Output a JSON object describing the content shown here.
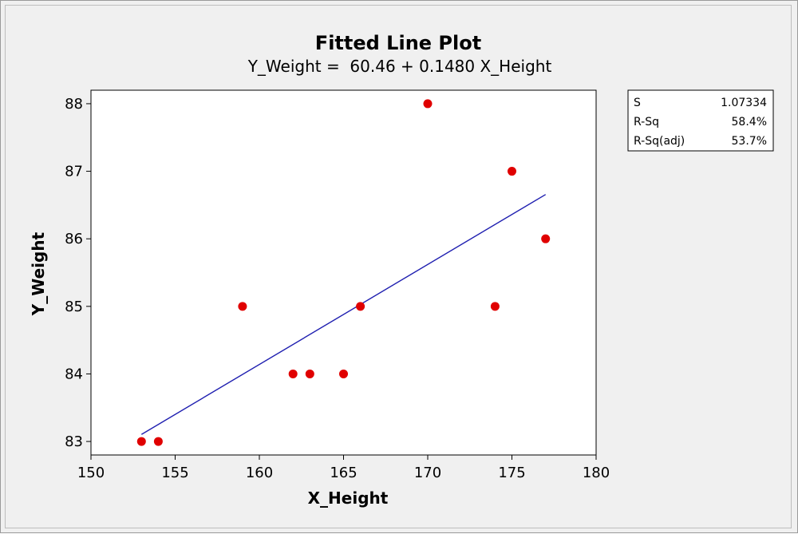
{
  "chart_data": {
    "type": "scatter",
    "title": "Fitted Line Plot",
    "subtitle": "Y_Weight =  60.46 + 0.1480 X_Height",
    "xlabel": "X_Height",
    "ylabel": "Y_Weight",
    "xlim": [
      150,
      180
    ],
    "ylim": [
      82.8,
      88.2
    ],
    "xticks": [
      150,
      155,
      160,
      165,
      170,
      175,
      180
    ],
    "yticks": [
      83,
      84,
      85,
      86,
      87,
      88
    ],
    "grid": false,
    "series": [
      {
        "type": "scatter",
        "color": "#e00000",
        "x": [
          153,
          154,
          159,
          162,
          163,
          165,
          166,
          170,
          174,
          175,
          177
        ],
        "y": [
          83,
          83,
          85,
          84,
          84,
          84,
          85,
          88,
          85,
          87,
          86
        ]
      },
      {
        "type": "line",
        "color": "#1f1fb0",
        "intercept": 60.46,
        "slope": 0.148,
        "x_range": [
          153,
          177
        ]
      }
    ],
    "stats_box": [
      {
        "label": "S",
        "value": "1.07334"
      },
      {
        "label": "R-Sq",
        "value": "58.4%"
      },
      {
        "label": "R-Sq(adj)",
        "value": "53.7%"
      }
    ]
  }
}
